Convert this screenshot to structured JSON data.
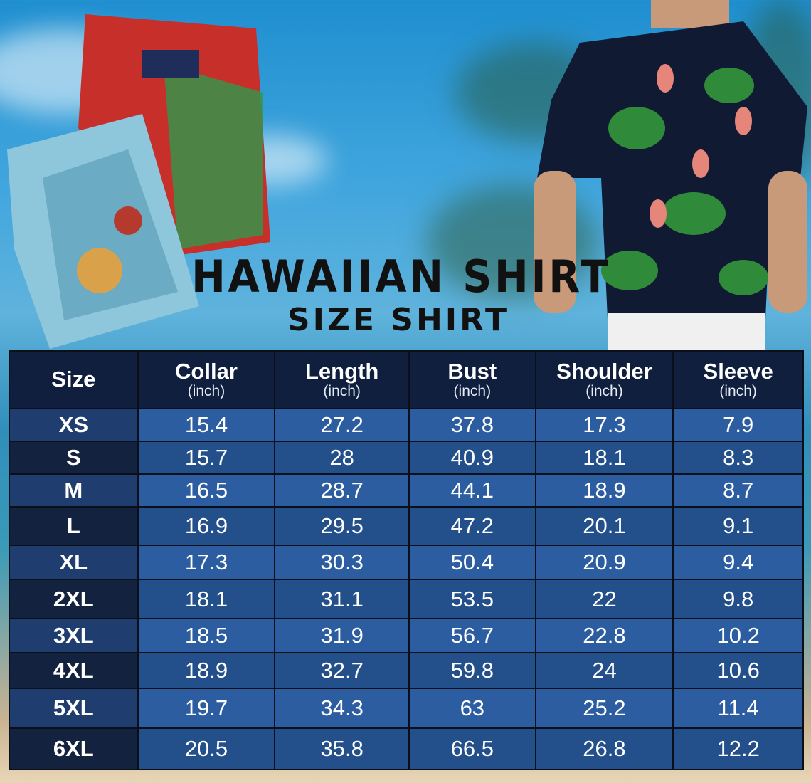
{
  "title": "HAWAIIAN SHIRT",
  "subtitle": "SIZE SHIRT",
  "colors": {
    "header_bg": "#0f1f3d",
    "row_light": "#2c5da0",
    "row_dark": "#234f8a",
    "size_light": "#1f3d6e",
    "size_dark": "#12223f",
    "title": "#111111"
  },
  "table": {
    "headers": [
      {
        "label": "Size",
        "unit": ""
      },
      {
        "label": "Collar",
        "unit": "(inch)"
      },
      {
        "label": "Length",
        "unit": "(inch)"
      },
      {
        "label": "Bust",
        "unit": "(inch)"
      },
      {
        "label": "Shoulder",
        "unit": "(inch)"
      },
      {
        "label": "Sleeve",
        "unit": "(inch)"
      }
    ],
    "rows": [
      [
        "XS",
        "15.4",
        "27.2",
        "37.8",
        "17.3",
        "7.9"
      ],
      [
        "S",
        "15.7",
        "28",
        "40.9",
        "18.1",
        "8.3"
      ],
      [
        "M",
        "16.5",
        "28.7",
        "44.1",
        "18.9",
        "8.7"
      ],
      [
        "L",
        "16.9",
        "29.5",
        "47.2",
        "20.1",
        "9.1"
      ],
      [
        "XL",
        "17.3",
        "30.3",
        "50.4",
        "20.9",
        "9.4"
      ],
      [
        "2XL",
        "18.1",
        "31.1",
        "53.5",
        "22",
        "9.8"
      ],
      [
        "3XL",
        "18.5",
        "31.9",
        "56.7",
        "22.8",
        "10.2"
      ],
      [
        "4XL",
        "18.9",
        "32.7",
        "59.8",
        "24",
        "10.6"
      ],
      [
        "5XL",
        "19.7",
        "34.3",
        "63",
        "25.2",
        "11.4"
      ],
      [
        "6XL",
        "20.5",
        "35.8",
        "66.5",
        "26.8",
        "12.2"
      ]
    ]
  }
}
